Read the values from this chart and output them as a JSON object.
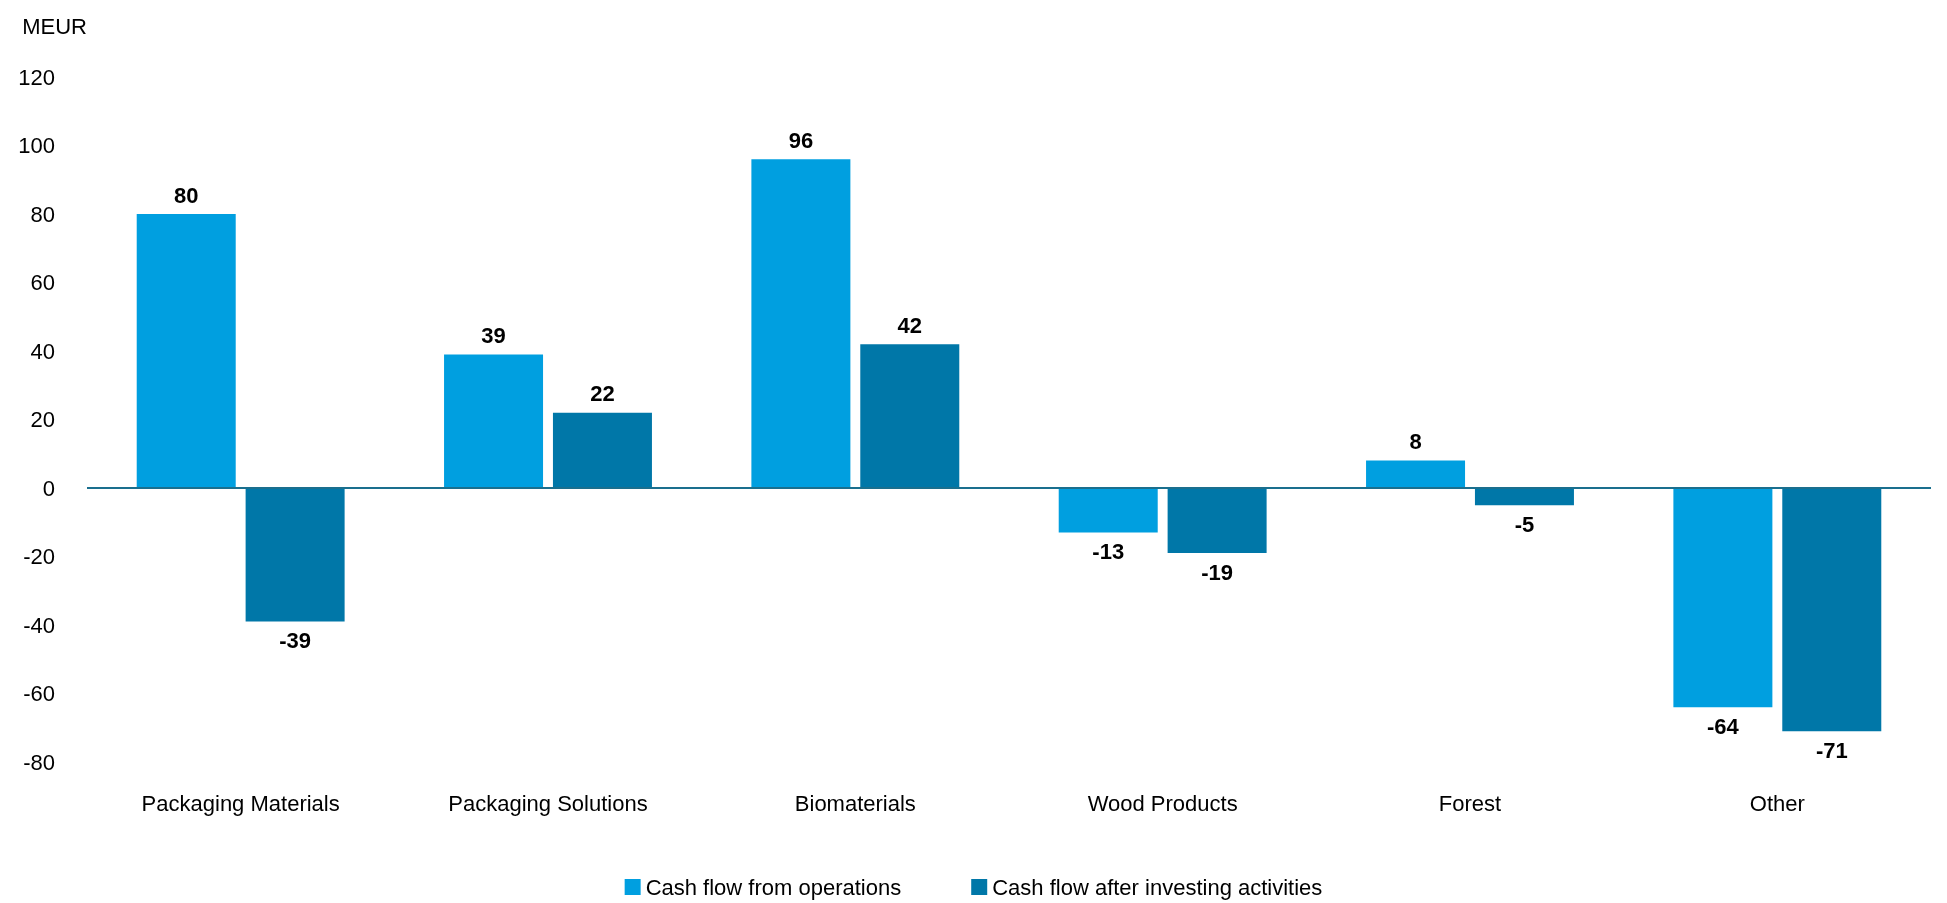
{
  "chart_data": {
    "type": "bar",
    "ylabel": "MEUR",
    "categories": [
      "Packaging Materials",
      "Packaging Solutions",
      "Biomaterials",
      "Wood Products",
      "Forest",
      "Other"
    ],
    "series": [
      {
        "name": "Cash flow from operations",
        "color": "#009fe0",
        "values": [
          80,
          39,
          96,
          -13,
          8,
          -64
        ]
      },
      {
        "name": "Cash flow after investing activities",
        "color": "#0077a8",
        "values": [
          -39,
          22,
          42,
          -19,
          -5,
          -71
        ]
      }
    ],
    "ylim": [
      -80,
      120
    ],
    "yticks": [
      -80,
      -60,
      -40,
      -20,
      0,
      20,
      40,
      60,
      80,
      100,
      120
    ],
    "ref_lines": [
      {
        "axis": "y",
        "value": 0,
        "color": "#1a6f8e"
      }
    ],
    "grid": false,
    "legend": "bottom",
    "data_labels": true
  }
}
